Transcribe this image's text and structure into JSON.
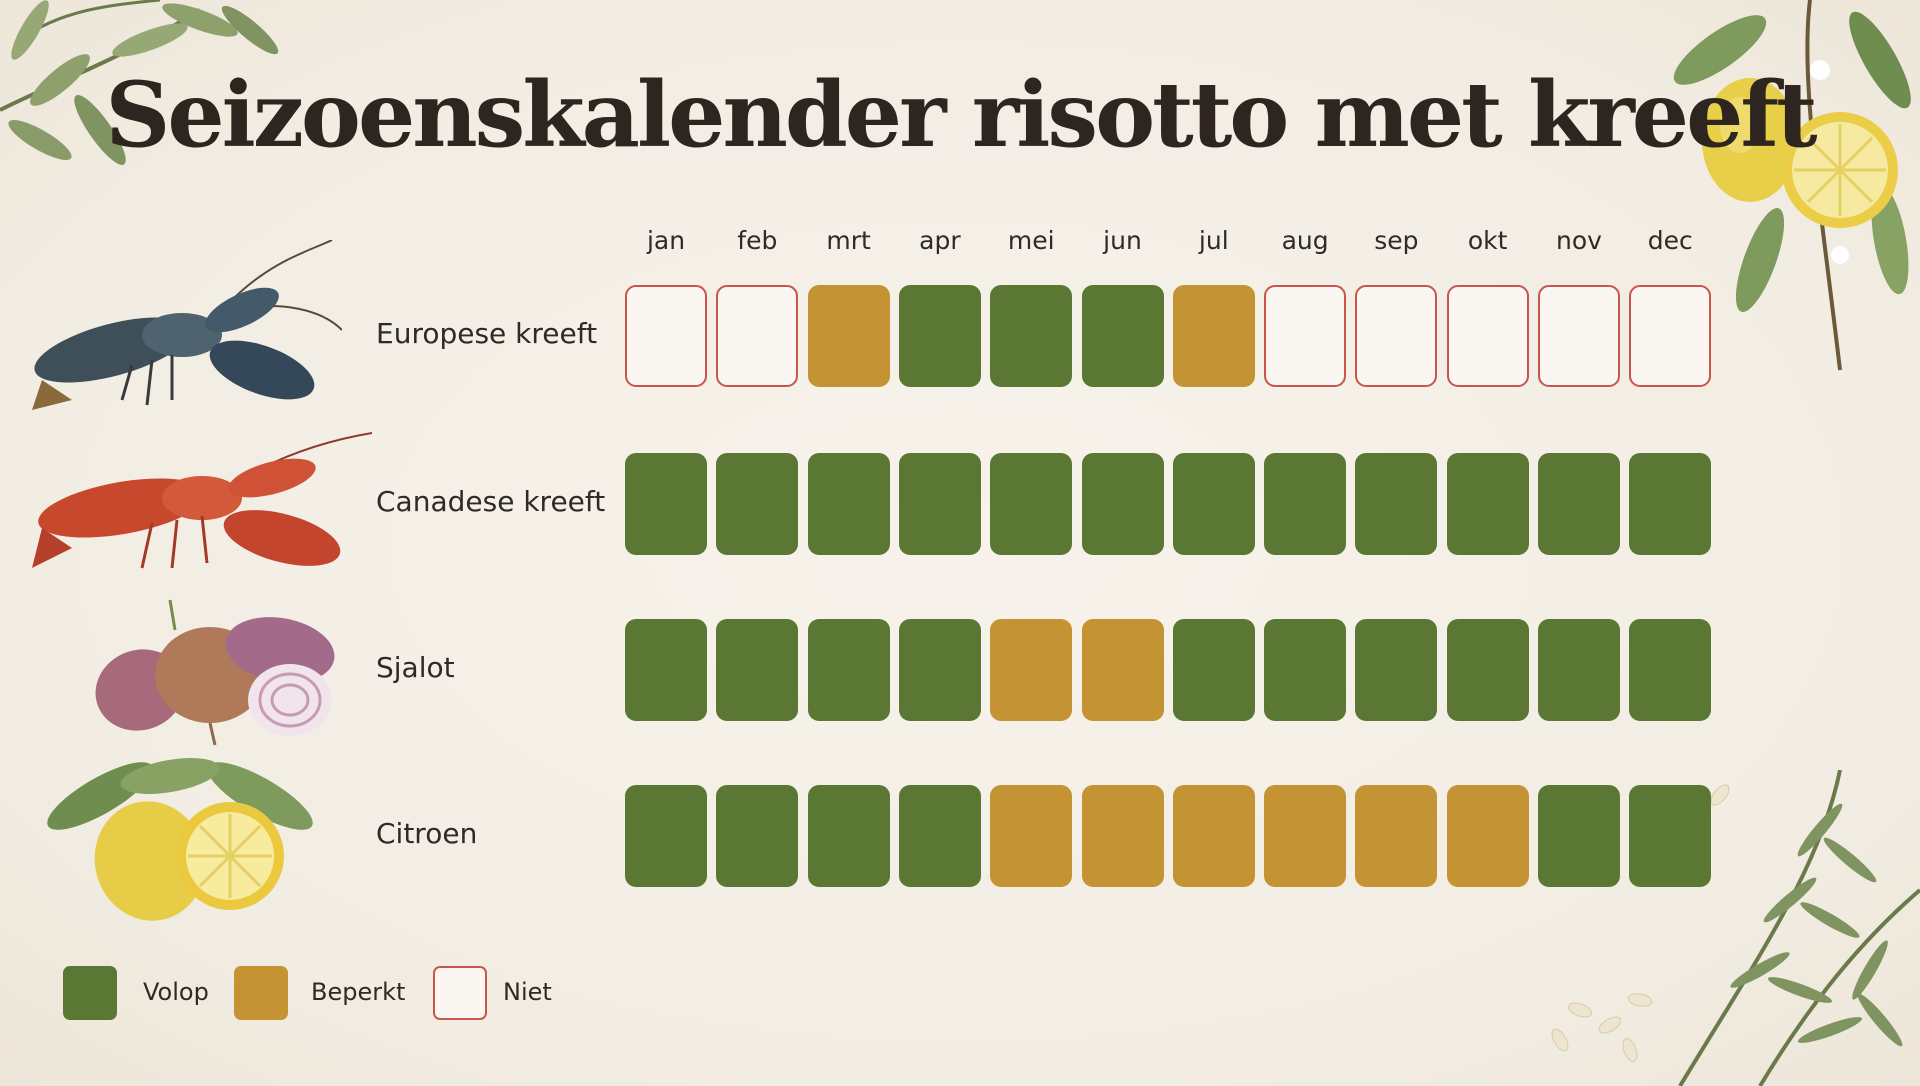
{
  "title": "Seizoenskalender risotto met kreeft",
  "legend": [
    {
      "key": "volop",
      "label": "Volop",
      "color": "#5a7833"
    },
    {
      "key": "beperkt",
      "label": "Beperkt",
      "color": "#c49334"
    },
    {
      "key": "niet",
      "label": "Niet",
      "color": "#c9564c"
    }
  ],
  "chart_data": {
    "type": "heatmap",
    "title": "Seizoenskalender risotto met kreeft",
    "months": [
      "jan",
      "feb",
      "mrt",
      "apr",
      "mei",
      "jun",
      "jul",
      "aug",
      "sep",
      "okt",
      "nov",
      "dec"
    ],
    "rows": [
      {
        "name": "Europese kreeft",
        "icon": "lobster-blue-icon",
        "values": [
          "niet",
          "niet",
          "beperkt",
          "volop",
          "volop",
          "volop",
          "beperkt",
          "niet",
          "niet",
          "niet",
          "niet",
          "niet"
        ]
      },
      {
        "name": "Canadese kreeft",
        "icon": "lobster-red-icon",
        "values": [
          "volop",
          "volop",
          "volop",
          "volop",
          "volop",
          "volop",
          "volop",
          "volop",
          "volop",
          "volop",
          "volop",
          "volop"
        ]
      },
      {
        "name": "Sjalot",
        "icon": "shallot-icon",
        "values": [
          "volop",
          "volop",
          "volop",
          "volop",
          "beperkt",
          "beperkt",
          "volop",
          "volop",
          "volop",
          "volop",
          "volop",
          "volop"
        ]
      },
      {
        "name": "Citroen",
        "icon": "lemon-icon",
        "values": [
          "volop",
          "volop",
          "volop",
          "volop",
          "beperkt",
          "beperkt",
          "beperkt",
          "beperkt",
          "beperkt",
          "beperkt",
          "volop",
          "volop"
        ]
      }
    ]
  }
}
